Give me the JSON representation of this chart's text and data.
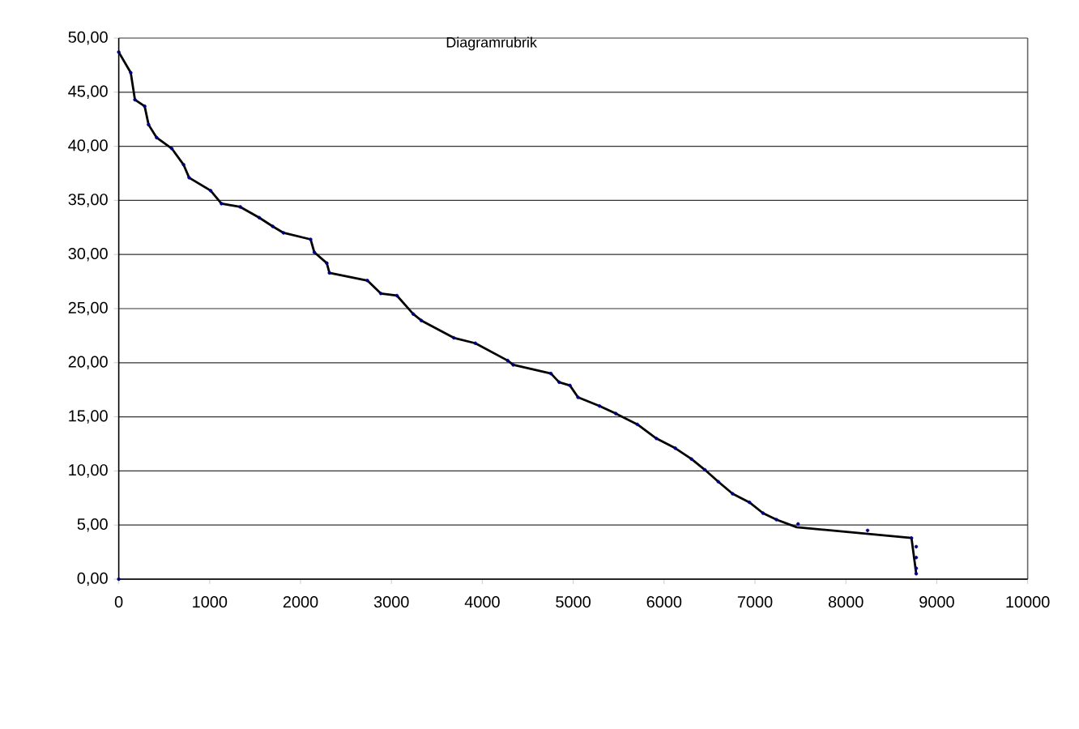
{
  "chart_data": {
    "type": "line",
    "title": "Diagramrubrik",
    "grid": "y",
    "legend": false,
    "xlim": [
      0,
      10000
    ],
    "xticks": [
      0,
      1000,
      2000,
      3000,
      4000,
      5000,
      6000,
      7000,
      8000,
      9000,
      10000
    ],
    "ylim": [
      0,
      50
    ],
    "yticks": [
      {
        "value": 0,
        "label": "0,00"
      },
      {
        "value": 5,
        "label": "5,00"
      },
      {
        "value": 10,
        "label": "10,00"
      },
      {
        "value": 15,
        "label": "15,00"
      },
      {
        "value": 20,
        "label": "20,00"
      },
      {
        "value": 25,
        "label": "25,00"
      },
      {
        "value": 30,
        "label": "30,00"
      },
      {
        "value": 35,
        "label": "35,00"
      },
      {
        "value": 40,
        "label": "40,00"
      },
      {
        "value": 45,
        "label": "45,00"
      },
      {
        "value": 50,
        "label": "50,00"
      }
    ],
    "series": [
      {
        "color": "#000000",
        "marker": "none",
        "line_style": "solid",
        "x": [
          0,
          132,
          178,
          285,
          328,
          417,
          583,
          713,
          774,
          1011,
          1130,
          1337,
          1546,
          1694,
          1813,
          2111,
          2152,
          2289,
          2318,
          2735,
          2883,
          3061,
          3240,
          3329,
          3686,
          3923,
          4279,
          4340,
          4755,
          4845,
          4964,
          5053,
          5290,
          5469,
          5706,
          5915,
          6123,
          6301,
          6449,
          6597,
          6753,
          6939,
          7088,
          7236,
          7459,
          8722,
          8774
        ],
        "values": [
          48.7,
          46.8,
          44.3,
          43.7,
          42.0,
          40.8,
          39.8,
          38.3,
          37.1,
          35.9,
          34.7,
          34.4,
          33.4,
          32.6,
          32.0,
          31.4,
          30.2,
          29.2,
          28.3,
          27.6,
          26.4,
          26.2,
          24.5,
          23.9,
          22.3,
          21.8,
          20.2,
          19.8,
          19.0,
          18.2,
          17.9,
          16.8,
          16.0,
          15.3,
          14.3,
          13.0,
          12.1,
          11.1,
          10.1,
          9.0,
          7.9,
          7.1,
          6.1,
          5.5,
          4.8,
          3.8,
          0.5
        ]
      },
      {
        "type": "scatter",
        "color": "#000080",
        "marker": "circle",
        "x": [
          0,
          0,
          132,
          178,
          285,
          328,
          417,
          583,
          713,
          774,
          1011,
          1130,
          1337,
          1546,
          1694,
          1813,
          2111,
          2152,
          2289,
          2318,
          2735,
          2883,
          3061,
          3240,
          3329,
          3686,
          3923,
          4279,
          4340,
          4755,
          4845,
          4964,
          5053,
          5290,
          5469,
          5706,
          5915,
          6123,
          6301,
          6449,
          6597,
          6753,
          6939,
          7088,
          7236,
          7474,
          8239,
          8722,
          8774,
          8774,
          8774,
          8774
        ],
        "values": [
          0,
          48.7,
          46.8,
          44.3,
          43.7,
          42.0,
          40.8,
          39.8,
          38.3,
          37.1,
          35.9,
          34.7,
          34.4,
          33.4,
          32.6,
          32.0,
          31.4,
          30.2,
          29.2,
          28.3,
          27.6,
          26.4,
          26.2,
          24.5,
          23.9,
          22.3,
          21.8,
          20.2,
          19.8,
          19.0,
          18.2,
          17.9,
          16.8,
          16.0,
          15.3,
          14.3,
          13.0,
          12.1,
          11.1,
          10.1,
          9.0,
          7.9,
          7.1,
          6.1,
          5.5,
          5.1,
          4.5,
          3.8,
          3.0,
          2.0,
          1.0,
          0.5
        ]
      }
    ]
  }
}
